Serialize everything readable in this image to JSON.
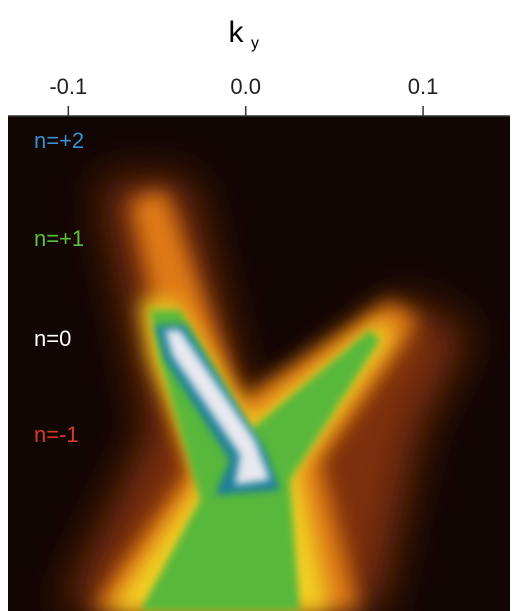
{
  "chart_data": {
    "type": "image",
    "x_label": {
      "main": "k",
      "sub": "y"
    },
    "xlim": [
      -0.134,
      0.149
    ],
    "xticks": [
      -0.1,
      {
        "value": 0,
        "label": "0.0"
      },
      0.1
    ],
    "annotations": [
      {
        "text": "n=+2",
        "color": "#3a8fd0"
      },
      {
        "text": "n=+1",
        "color": "#5cc23a"
      },
      {
        "text": "n=0",
        "color": "#ffffff"
      },
      {
        "text": "n=-1",
        "color": "#d83a2a"
      }
    ]
  }
}
